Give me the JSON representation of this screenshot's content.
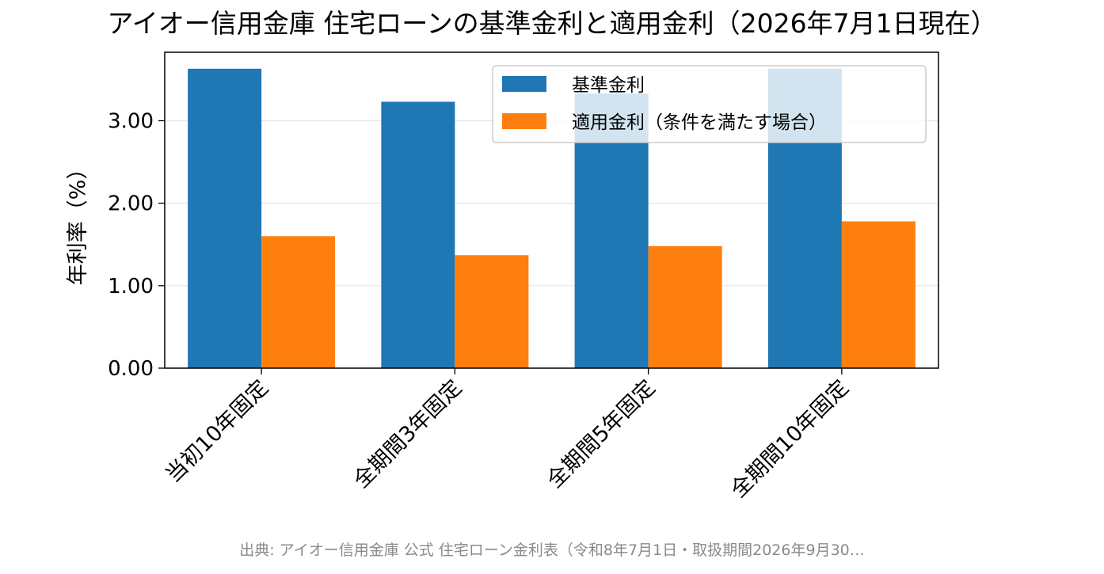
{
  "chart_data": {
    "type": "bar",
    "title": "アイオー信用金庫 住宅ローンの基準金利と適用金利（2026年7月1日現在）",
    "ylabel": "年利率（%）",
    "xlabel": "",
    "categories": [
      "当初10年固定",
      "全期間3年固定",
      "全期間5年固定",
      "全期間10年固定"
    ],
    "series": [
      {
        "name": "基準金利",
        "values": [
          3.63,
          3.23,
          3.33,
          3.63
        ],
        "color": "#1f77b4"
      },
      {
        "name": "適用金利（条件を満たす場合）",
        "values": [
          1.6,
          1.37,
          1.48,
          1.78
        ],
        "color": "#ff7f0e"
      }
    ],
    "ylim": [
      0,
      3.83
    ],
    "yticks": [
      "0.00",
      "1.00",
      "2.00",
      "3.00"
    ],
    "grid": "horizontal",
    "legend_position": "top-right",
    "source": "出典: アイオー信用金庫 公式 住宅ローン金利表（令和8年7月1日・取扱期間2026年9月30…"
  }
}
